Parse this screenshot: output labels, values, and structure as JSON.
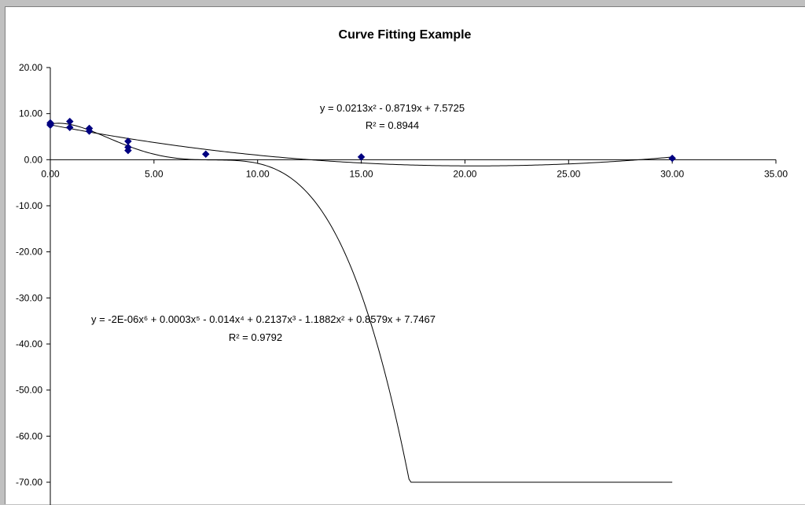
{
  "chart_data": {
    "type": "scatter",
    "title": "Curve Fitting Example",
    "xlabel": "",
    "ylabel": "",
    "xlim": [
      0,
      35
    ],
    "ylim": [
      -70,
      20
    ],
    "x_ticks": [
      "0.00",
      "5.00",
      "10.00",
      "15.00",
      "20.00",
      "25.00",
      "30.00",
      "35.00"
    ],
    "y_ticks": [
      "20.00",
      "10.00",
      "0.00",
      "-10.00",
      "-20.00",
      "-30.00",
      "-40.00",
      "-50.00",
      "-60.00",
      "-70.00"
    ],
    "grid": false,
    "legend": "none",
    "series": [
      {
        "marker": "diamond",
        "color": "#000080",
        "points": [
          [
            0,
            8.0
          ],
          [
            0,
            7.5
          ],
          [
            0,
            7.7
          ],
          [
            0.94,
            8.3
          ],
          [
            0.94,
            7.0
          ],
          [
            1.88,
            6.8
          ],
          [
            1.88,
            6.2
          ],
          [
            3.75,
            4.0
          ],
          [
            3.75,
            2.7
          ],
          [
            3.75,
            2.0
          ],
          [
            7.5,
            1.2
          ],
          [
            15.0,
            0.6
          ],
          [
            30.0,
            0.3
          ]
        ]
      }
    ],
    "trendlines": [
      {
        "kind": "polynomial-2",
        "equation": "y = 0.0213x² - 0.8719x + 7.5725",
        "r2": "R² = 0.8944",
        "coefficients": [
          7.5725,
          -0.8719,
          0.0213
        ]
      },
      {
        "kind": "polynomial-6",
        "equation": "y = -2E-06x⁶ + 0.0003x⁵ - 0.014x⁴ + 0.2137x³ - 1.1882x² + 0.8579x + 7.7467",
        "r2": "R² = 0.9792",
        "coefficients": [
          7.7467,
          0.8579,
          -1.1882,
          0.2137,
          -0.014,
          0.0003,
          -2e-06
        ]
      }
    ],
    "colors": {
      "marker": "#000080",
      "line": "#000000",
      "background": "#ffffff",
      "frame": "#c0c0c0"
    }
  }
}
